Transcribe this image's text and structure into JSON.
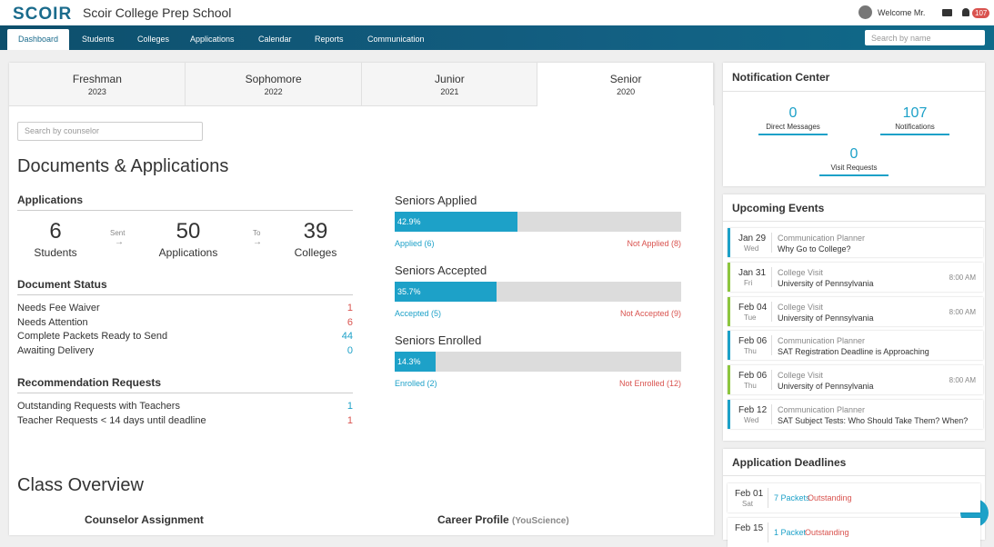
{
  "header": {
    "logo": "SCOIR",
    "school": "Scoir College Prep School",
    "user": "Welcome Mr.",
    "badge": "107"
  },
  "nav": {
    "tabs": [
      "Dashboard",
      "Students",
      "Colleges",
      "Applications",
      "Calendar",
      "Reports",
      "Communication"
    ],
    "search": "Search by name"
  },
  "years": [
    {
      "name": "Freshman",
      "year": "2023"
    },
    {
      "name": "Sophomore",
      "year": "2022"
    },
    {
      "name": "Junior",
      "year": "2021"
    },
    {
      "name": "Senior",
      "year": "2020"
    }
  ],
  "counselor_search": "Search by counselor",
  "documents": {
    "title": "Documents & Applications",
    "applications": {
      "heading": "Applications",
      "sent": "Sent",
      "to": "To",
      "stats": [
        {
          "value": 6,
          "label": "Students"
        },
        {
          "value": 50,
          "label": "Applications"
        },
        {
          "value": 39,
          "label": "Colleges"
        }
      ]
    },
    "document_status": {
      "heading": "Document Status",
      "rows": [
        {
          "label": "Needs Fee Waiver",
          "value": 1,
          "color": "#d9534f"
        },
        {
          "label": "Needs Attention",
          "value": 6,
          "color": "#d9534f"
        },
        {
          "label": "Complete Packets Ready to Send",
          "value": 44,
          "color": "#1da1c8"
        },
        {
          "label": "Awaiting Delivery",
          "value": 0,
          "color": "#1da1c8"
        }
      ]
    },
    "recommendations": {
      "heading": "Recommendation Requests",
      "rows": [
        {
          "label": "Outstanding Requests with Teachers",
          "value": 1,
          "color": "#1da1c8"
        },
        {
          "label": "Teacher Requests < 14 days until deadline",
          "value": 1,
          "color": "#d9534f"
        }
      ]
    },
    "progress": [
      {
        "title": "Seniors Applied",
        "value": 42.9,
        "label": "42.9%",
        "yes": "Applied (6)",
        "no": "Not Applied (8)"
      },
      {
        "title": "Seniors Accepted",
        "value": 35.7,
        "label": "35.7%",
        "yes": "Accepted (5)",
        "no": "Not Accepted (9)"
      },
      {
        "title": "Seniors Enrolled",
        "value": 14.3,
        "label": "14.3%",
        "yes": "Enrolled (2)",
        "no": "Not Enrolled (12)"
      }
    ]
  },
  "class_overview": {
    "title": "Class Overview",
    "counselor": "Counselor Assignment",
    "career": "Career Profile",
    "career_source": "(YouScience)"
  },
  "notifications": {
    "title": "Notification Center",
    "items": [
      {
        "value": 0,
        "label": "Direct Messages"
      },
      {
        "value": 107,
        "label": "Notifications"
      },
      {
        "value": 0,
        "label": "Visit Requests"
      }
    ]
  },
  "events": {
    "title": "Upcoming Events",
    "items": [
      {
        "date": "Jan 29",
        "day": "Wed",
        "type": "Communication Planner",
        "title": "Why Go to College?",
        "time": null,
        "color": "#1da1c8"
      },
      {
        "date": "Jan 31",
        "day": "Fri",
        "type": "College Visit",
        "title": "University of Pennsylvania",
        "time": "8:00 AM",
        "color": "#8dc63f"
      },
      {
        "date": "Feb 04",
        "day": "Tue",
        "type": "College Visit",
        "title": "University of Pennsylvania",
        "time": "8:00 AM",
        "color": "#8dc63f"
      },
      {
        "date": "Feb 06",
        "day": "Thu",
        "type": "Communication Planner",
        "title": "SAT Registration Deadline is Approaching",
        "time": null,
        "color": "#1da1c8"
      },
      {
        "date": "Feb 06",
        "day": "Thu",
        "type": "College Visit",
        "title": "University of Pennsylvania",
        "time": "8:00 AM",
        "color": "#8dc63f"
      },
      {
        "date": "Feb 12",
        "day": "Wed",
        "type": "Communication Planner",
        "title": "SAT Subject Tests: Who Should Take Them? When?",
        "time": null,
        "color": "#1da1c8"
      }
    ]
  },
  "deadlines": {
    "title": "Application Deadlines",
    "items": [
      {
        "date": "Feb 01",
        "day": "Sat",
        "count": "7 Packets",
        "status": "Outstanding"
      },
      {
        "date": "Feb 15",
        "day": null,
        "count": "1 Packet",
        "status": "Outstanding"
      }
    ]
  }
}
